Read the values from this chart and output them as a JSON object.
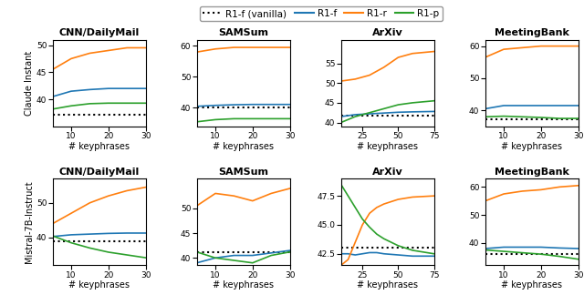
{
  "row_labels": [
    "Claude Instant",
    "Mistral-7B-Instruct"
  ],
  "col_titles": [
    "CNN/DailyMail",
    "SAMSum",
    "ArXiv",
    "MeetingBank"
  ],
  "legend_labels": [
    "R1-f (vanilla)",
    "R1-f",
    "R1-r",
    "R1-p"
  ],
  "legend_colors": [
    "black",
    "#1f77b4",
    "#ff7f0e",
    "#2ca02c"
  ],
  "x_label": "# keyphrases",
  "panels": {
    "row0_col0": {
      "x": [
        5,
        10,
        15,
        20,
        25,
        30
      ],
      "vanilla": 37.2,
      "r1f": [
        40.5,
        41.5,
        41.8,
        42.0,
        42.0,
        42.0
      ],
      "r1r": [
        45.5,
        47.5,
        48.5,
        49.0,
        49.5,
        49.5
      ],
      "r1p": [
        38.2,
        38.8,
        39.2,
        39.3,
        39.3,
        39.3
      ],
      "ylim": [
        35,
        51
      ],
      "yticks": [
        40,
        45,
        50
      ],
      "xticks": [
        10,
        20,
        30
      ],
      "xlim": [
        5,
        30
      ]
    },
    "row0_col1": {
      "x": [
        5,
        10,
        15,
        20,
        25,
        30
      ],
      "vanilla": 40.2,
      "r1f": [
        40.5,
        40.8,
        41.0,
        41.1,
        41.1,
        41.1
      ],
      "r1r": [
        58.0,
        59.0,
        59.5,
        59.5,
        59.5,
        59.5
      ],
      "r1p": [
        35.5,
        36.2,
        36.5,
        36.5,
        36.5,
        36.5
      ],
      "ylim": [
        34,
        62
      ],
      "yticks": [
        40,
        50,
        60
      ],
      "xticks": [
        10,
        20,
        30
      ],
      "xlim": [
        5,
        30
      ]
    },
    "row0_col2": {
      "x": [
        10,
        20,
        30,
        40,
        50,
        60,
        75
      ],
      "vanilla": 41.8,
      "r1f": [
        41.5,
        42.0,
        42.2,
        42.4,
        42.6,
        42.7,
        42.8
      ],
      "r1r": [
        50.5,
        51.0,
        52.0,
        54.0,
        56.5,
        57.5,
        58.0
      ],
      "r1p": [
        40.0,
        41.5,
        42.5,
        43.5,
        44.5,
        45.0,
        45.5
      ],
      "ylim": [
        39,
        61
      ],
      "yticks": [
        40,
        45,
        50,
        55
      ],
      "xticks": [
        25,
        50,
        75
      ],
      "xlim": [
        10,
        75
      ]
    },
    "row0_col3": {
      "x": [
        5,
        10,
        15,
        20,
        25,
        30
      ],
      "vanilla": 37.2,
      "r1f": [
        40.5,
        41.5,
        41.5,
        41.5,
        41.5,
        41.5
      ],
      "r1r": [
        56.5,
        59.0,
        59.5,
        60.0,
        60.0,
        60.0
      ],
      "r1p": [
        38.0,
        38.2,
        38.0,
        37.8,
        37.5,
        37.5
      ],
      "ylim": [
        35,
        62
      ],
      "yticks": [
        40,
        50,
        60
      ],
      "xticks": [
        10,
        20,
        30
      ],
      "xlim": [
        5,
        30
      ]
    },
    "row1_col0": {
      "x": [
        5,
        10,
        15,
        20,
        25,
        30
      ],
      "vanilla": 39.0,
      "r1f": [
        40.3,
        40.8,
        41.0,
        41.2,
        41.3,
        41.3
      ],
      "r1r": [
        44.0,
        47.0,
        50.0,
        52.0,
        53.5,
        54.5
      ],
      "r1p": [
        40.5,
        38.5,
        37.0,
        35.8,
        35.0,
        34.2
      ],
      "ylim": [
        32,
        57
      ],
      "yticks": [
        40,
        50
      ],
      "xticks": [
        10,
        20,
        30
      ],
      "xlim": [
        5,
        30
      ]
    },
    "row1_col1": {
      "x": [
        5,
        10,
        15,
        20,
        25,
        30
      ],
      "vanilla": 41.2,
      "r1f": [
        39.0,
        40.0,
        40.5,
        40.5,
        41.0,
        41.5
      ],
      "r1r": [
        50.5,
        53.0,
        52.5,
        51.5,
        53.0,
        54.0
      ],
      "r1p": [
        41.2,
        40.0,
        39.5,
        39.0,
        40.5,
        41.2
      ],
      "ylim": [
        38.5,
        56
      ],
      "yticks": [
        40,
        45,
        50
      ],
      "xticks": [
        10,
        20,
        30
      ],
      "xlim": [
        5,
        30
      ]
    },
    "row1_col2": {
      "x": [
        10,
        15,
        20,
        25,
        30,
        35,
        40,
        50,
        60,
        75
      ],
      "vanilla": 43.0,
      "r1f": [
        42.5,
        42.5,
        42.4,
        42.5,
        42.6,
        42.6,
        42.5,
        42.4,
        42.3,
        42.3
      ],
      "r1r": [
        41.5,
        42.0,
        43.5,
        45.0,
        46.0,
        46.5,
        46.8,
        47.2,
        47.4,
        47.5
      ],
      "r1p": [
        48.5,
        47.5,
        46.5,
        45.5,
        44.8,
        44.2,
        43.8,
        43.2,
        42.8,
        42.5
      ],
      "ylim": [
        41.5,
        49.0
      ],
      "yticks": [
        42.5,
        45.0,
        47.5
      ],
      "xticks": [
        25,
        50,
        75
      ],
      "xlim": [
        10,
        75
      ]
    },
    "row1_col3": {
      "x": [
        5,
        10,
        15,
        20,
        25,
        30
      ],
      "vanilla": 36.0,
      "r1f": [
        38.0,
        38.5,
        38.5,
        38.5,
        38.2,
        38.0
      ],
      "r1r": [
        55.0,
        57.5,
        58.5,
        59.0,
        60.0,
        60.5
      ],
      "r1p": [
        37.5,
        37.0,
        36.5,
        36.0,
        35.2,
        34.2
      ],
      "ylim": [
        32,
        63
      ],
      "yticks": [
        40,
        50,
        60
      ],
      "xticks": [
        10,
        20,
        30
      ],
      "xlim": [
        5,
        30
      ]
    }
  }
}
